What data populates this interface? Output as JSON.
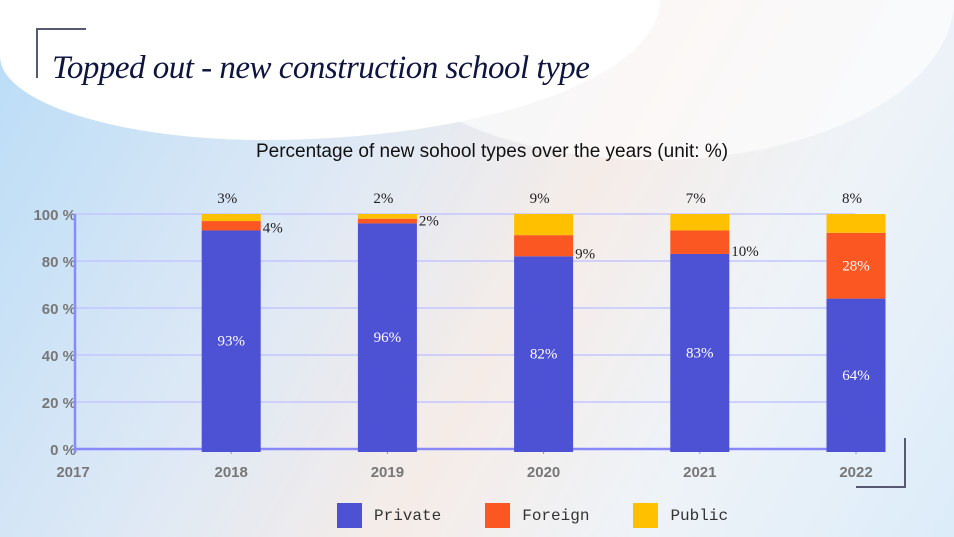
{
  "title": "Topped out - new construction school type",
  "chart_data": {
    "type": "bar",
    "stacked": true,
    "title": "Percentage of new sohool types over the years (unit: %)",
    "xlabel": "",
    "ylabel": "",
    "ylim": [
      0,
      100
    ],
    "yticks": [
      "0 %",
      "20 %",
      "40 %",
      "60 %",
      "80 %",
      "100 %"
    ],
    "x_axis_start_label": "2017",
    "categories": [
      "2018",
      "2019",
      "2020",
      "2021",
      "2022"
    ],
    "series": [
      {
        "name": "Private",
        "color": "#4d52d4",
        "values": [
          93,
          96,
          82,
          83,
          64
        ],
        "labels": [
          "93%",
          "96%",
          "82%",
          "83%",
          "64%"
        ]
      },
      {
        "name": "Foreign",
        "color": "#fb5722",
        "values": [
          4,
          2,
          9,
          10,
          28
        ],
        "labels": [
          "4%",
          "2%",
          "9%",
          "10%",
          "28%"
        ]
      },
      {
        "name": "Public",
        "color": "#ffc000",
        "values": [
          3,
          2,
          9,
          7,
          8
        ],
        "labels": [
          "3%",
          "2%",
          "9%",
          "7%",
          "8%"
        ]
      }
    ],
    "grid": true,
    "legend": "bottom"
  }
}
